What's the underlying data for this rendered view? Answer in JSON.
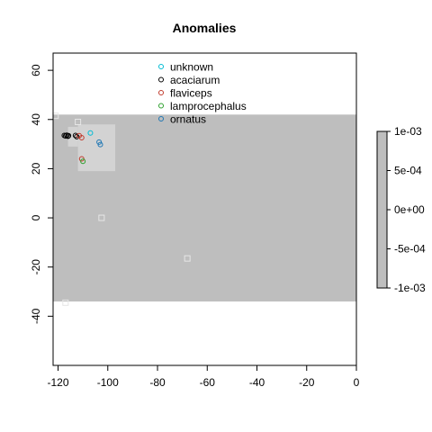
{
  "chart_data": {
    "type": "scatter",
    "title": "Anomalies",
    "xlabel": "",
    "ylabel": "",
    "xlim": [
      -122,
      0
    ],
    "ylim": [
      -60,
      67
    ],
    "xticks": [
      "-120",
      "-100",
      "-80",
      "-60",
      "-40",
      "-20",
      "0"
    ],
    "yticks": [
      "60",
      "40",
      "20",
      "0",
      "-20",
      "-40"
    ],
    "xtick_values": [
      -120,
      -100,
      -80,
      -60,
      -40,
      -20,
      0
    ],
    "ytick_values": [
      60,
      40,
      20,
      0,
      -20,
      -40
    ],
    "grid": false,
    "legend_position": "top-center",
    "raster": {
      "color": "#bebebe",
      "band": {
        "x": [
          -122,
          0
        ],
        "y": [
          -34,
          42
        ]
      },
      "north_block": {
        "x": [
          -122,
          -97
        ],
        "y": [
          19,
          42
        ]
      },
      "isolated_cells": [
        [
          -102.5,
          0
        ],
        [
          -68,
          -16.5
        ],
        [
          -117,
          -34.5
        ],
        [
          -121,
          41.5
        ],
        [
          -112,
          39
        ]
      ],
      "light_cell_color": "#d3d3d3"
    },
    "colorbar": {
      "ticks": [
        "1e-03",
        "5e-04",
        "0e+00",
        "-5e-04",
        "-1e-03"
      ],
      "tick_values": [
        0.001,
        0.0005,
        0,
        -0.0005,
        -0.001
      ],
      "range": [
        -0.001,
        0.001
      ],
      "color": "#bebebe"
    },
    "series": [
      {
        "name": "unknown",
        "color": "#00bcd4",
        "points": [
          [
            -107,
            34.5
          ]
        ]
      },
      {
        "name": "acaciarum",
        "color": "#000000",
        "points": [
          [
            -117.5,
            33.5
          ],
          [
            -117,
            33.3
          ],
          [
            -116.5,
            33.6
          ],
          [
            -116,
            33.2
          ],
          [
            -115.8,
            33.4
          ],
          [
            -113,
            33.5
          ],
          [
            -112.5,
            33
          ]
        ]
      },
      {
        "name": "flaviceps",
        "color": "#c0392b",
        "points": [
          [
            -111.5,
            33.4
          ],
          [
            -110.5,
            32.6
          ],
          [
            -110.5,
            24
          ]
        ]
      },
      {
        "name": "lamprocephalus",
        "color": "#2ca02c",
        "points": [
          [
            -110,
            23
          ]
        ]
      },
      {
        "name": "ornatus",
        "color": "#1f77b4",
        "points": [
          [
            -103.5,
            30.8
          ],
          [
            -103,
            29.8
          ]
        ]
      }
    ]
  }
}
